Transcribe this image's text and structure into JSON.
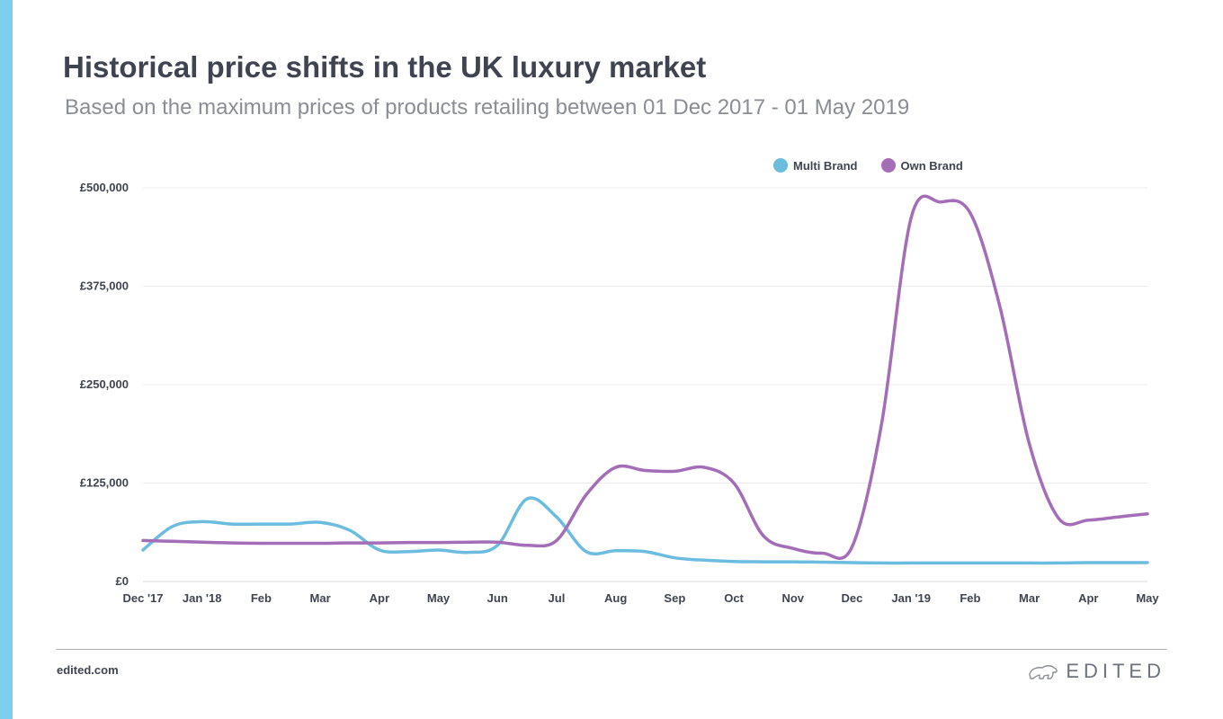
{
  "header": {
    "title": "Historical price shifts in the UK luxury market",
    "subtitle": "Based on the maximum prices of products retailing between 01 Dec 2017 - 01 May 2019"
  },
  "footer": {
    "url": "edited.com",
    "logo_text": "EDITED",
    "logo_icon": "polar-bear-icon"
  },
  "colors": {
    "accent": "#7fcdef",
    "multi_brand": "#6cbcdf",
    "own_brand": "#a46db7",
    "grid": "#ececec",
    "text": "#3f4450"
  },
  "chart_data": {
    "type": "line",
    "title": "Historical price shifts in the UK luxury market",
    "subtitle": "Based on the maximum prices of products retailing between 01 Dec 2017 - 01 May 2019",
    "xlabel": "",
    "ylabel": "",
    "categories": [
      "Dec '17",
      "Jan '18",
      "Feb",
      "Mar",
      "Apr",
      "May",
      "Jun",
      "Jul",
      "Aug",
      "Sep",
      "Oct",
      "Nov",
      "Dec",
      "Jan '19",
      "Feb",
      "Mar",
      "Apr",
      "May"
    ],
    "x": [
      0,
      0.5,
      1,
      1.5,
      2,
      2.5,
      3,
      3.5,
      4,
      4.5,
      5,
      5.5,
      6,
      6.5,
      7,
      7.5,
      8,
      8.5,
      9,
      9.5,
      10,
      10.5,
      11,
      11.5,
      12,
      12.5,
      13,
      13.5,
      14,
      14.5,
      15,
      15.5,
      16,
      16.5,
      17
    ],
    "series": [
      {
        "name": "Multi Brand",
        "color": "#6cbcdf",
        "values": [
          40000,
          70000,
          76000,
          73000,
          73000,
          73000,
          75000,
          65000,
          40000,
          38000,
          40000,
          37000,
          46000,
          105000,
          82000,
          38000,
          39000,
          38000,
          30000,
          27000,
          25500,
          25000,
          25000,
          24500,
          24000,
          23500,
          23500,
          23500,
          23500,
          23500,
          23500,
          23500,
          24000,
          24000,
          24000
        ]
      },
      {
        "name": "Own Brand",
        "color": "#a46db7",
        "values": [
          52000,
          51000,
          50000,
          49000,
          48500,
          48500,
          48500,
          49000,
          49000,
          49500,
          49500,
          50000,
          50000,
          46000,
          52000,
          110000,
          145000,
          141000,
          140000,
          145000,
          125000,
          58000,
          42000,
          36000,
          44000,
          200000,
          462000,
          482000,
          468000,
          350000,
          175000,
          80000,
          78000,
          82000,
          86000
        ]
      }
    ],
    "ylim": [
      0,
      500000
    ],
    "yticks": [
      "£0",
      "£125,000",
      "£250,000",
      "£375,000",
      "£500,000"
    ],
    "ytick_values": [
      0,
      125000,
      250000,
      375000,
      500000
    ],
    "grid": true,
    "legend": "top-right"
  }
}
